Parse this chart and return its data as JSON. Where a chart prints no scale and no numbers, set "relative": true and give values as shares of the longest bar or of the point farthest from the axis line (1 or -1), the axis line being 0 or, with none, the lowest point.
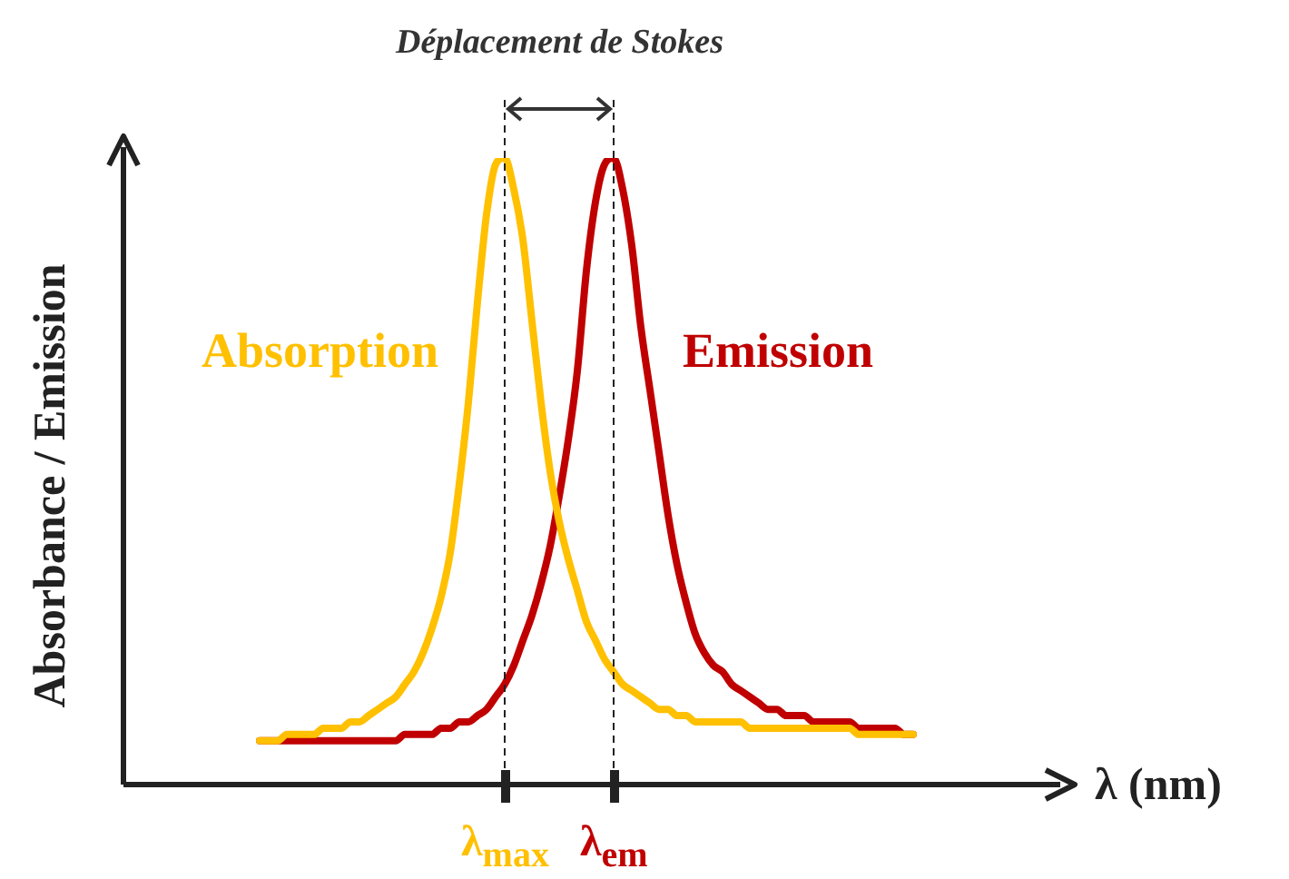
{
  "chart_data": {
    "type": "line",
    "title": "Déplacement de Stokes",
    "xlabel": "λ (nm)",
    "ylabel": "Absorbance / Emission",
    "relative": true,
    "categories": [
      null,
      null,
      null,
      null,
      null,
      null,
      null,
      null,
      null,
      null,
      null,
      null,
      null,
      null,
      null,
      null,
      null,
      null,
      null,
      null,
      null,
      null,
      null,
      null,
      null,
      null,
      null,
      "λ$_{max}$",
      null,
      null,
      null,
      null,
      null,
      null,
      null,
      null,
      null,
      null,
      null,
      "λ$_{em}$",
      null,
      null,
      null,
      null,
      null,
      null,
      null,
      null,
      null,
      null,
      null,
      null,
      null,
      null,
      null,
      null,
      null,
      null,
      null,
      null,
      null,
      null,
      null,
      null,
      null,
      null,
      null,
      null,
      null,
      null,
      null,
      null,
      null
    ],
    "series": [
      {
        "name": "Absorption",
        "color": "#ffc000",
        "values": [
          0.07,
          0.07,
          0.07,
          0.08,
          0.08,
          0.08,
          0.08,
          0.09,
          0.09,
          0.09,
          0.1,
          0.1,
          0.11,
          0.12,
          0.13,
          0.14,
          0.16,
          0.18,
          0.21,
          0.25,
          0.3,
          0.37,
          0.48,
          0.61,
          0.77,
          0.91,
          0.99,
          1,
          0.95,
          0.87,
          0.74,
          0.61,
          0.5,
          0.42,
          0.36,
          0.31,
          0.26,
          0.23,
          0.2,
          0.18,
          0.16,
          0.15,
          0.14,
          0.13,
          0.12,
          0.12,
          0.11,
          0.11,
          0.1,
          0.1,
          0.1,
          0.1,
          0.1,
          0.1,
          0.09,
          0.09,
          0.09,
          0.09,
          0.09,
          0.09,
          0.09,
          0.09,
          0.09,
          0.09,
          0.09,
          0.09,
          0.08,
          0.08,
          0.08,
          0.08,
          0.08,
          0.08,
          0.08
        ]
      },
      {
        "name": "Emission",
        "color": "#c00000",
        "values": [
          0.07,
          0.07,
          0.07,
          0.07,
          0.07,
          0.07,
          0.07,
          0.07,
          0.07,
          0.07,
          0.07,
          0.07,
          0.07,
          0.07,
          0.07,
          0.07,
          0.08,
          0.08,
          0.08,
          0.08,
          0.09,
          0.09,
          0.1,
          0.1,
          0.11,
          0.12,
          0.14,
          0.16,
          0.19,
          0.23,
          0.27,
          0.32,
          0.38,
          0.46,
          0.55,
          0.66,
          0.82,
          0.93,
          0.99,
          1,
          0.95,
          0.86,
          0.73,
          0.63,
          0.53,
          0.43,
          0.35,
          0.29,
          0.24,
          0.21,
          0.19,
          0.18,
          0.16,
          0.15,
          0.14,
          0.13,
          0.12,
          0.12,
          0.11,
          0.11,
          0.11,
          0.1,
          0.1,
          0.1,
          0.1,
          0.1,
          0.09,
          0.09,
          0.09,
          0.09,
          0.09,
          0.08,
          0.08
        ]
      }
    ],
    "ref_lines": [
      {
        "axis": "x",
        "value": "λ$_{max}$",
        "line_style": "dashed"
      },
      {
        "axis": "x",
        "value": "λ$_{em}$",
        "line_style": "dashed"
      }
    ]
  }
}
